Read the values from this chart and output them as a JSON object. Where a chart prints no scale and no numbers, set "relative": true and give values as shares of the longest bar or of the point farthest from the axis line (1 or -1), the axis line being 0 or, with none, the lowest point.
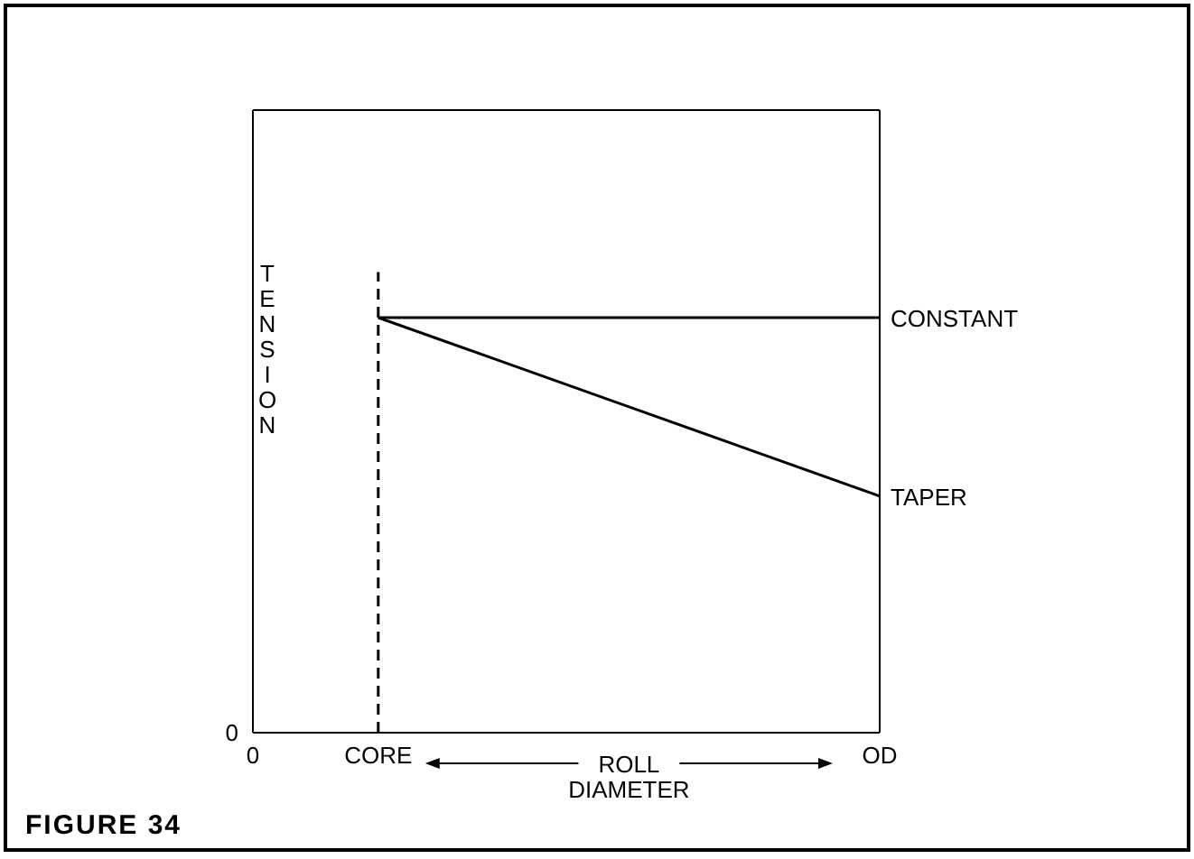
{
  "chart_data": {
    "type": "line",
    "relative": true,
    "xlabel": "ROLL DIAMETER",
    "ylabel": "TENSION",
    "categories": [
      "0",
      "CORE",
      null,
      null,
      null,
      "OD"
    ],
    "series": [
      {
        "name": "CONSTANT",
        "color": "#000000",
        "values": [
          null,
          1,
          1,
          1,
          1,
          1
        ]
      },
      {
        "name": "TAPER",
        "color": "#000000",
        "values": [
          null,
          1,
          0.8925,
          0.785,
          0.6775,
          0.57
        ]
      }
    ],
    "ref_lines": [
      {
        "axis": "x",
        "value": "CORE",
        "line_style": "dashed",
        "color": "#000000"
      }
    ],
    "annotations": [
      "0",
      "FIGURE 34"
    ],
    "marker": "none",
    "line_style": "solid"
  }
}
